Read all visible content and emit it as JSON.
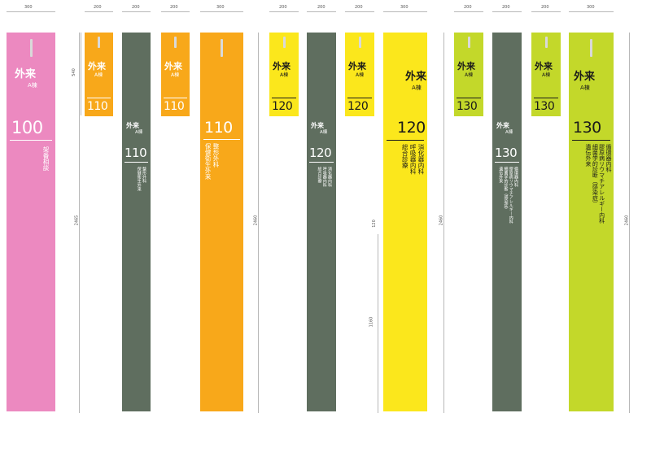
{
  "panel_defaults": {
    "building_label": "外来",
    "wing_label": "A棟"
  },
  "colors": {
    "pink": "#ec89c0",
    "orange": "#f8a81a",
    "gray": "#5f6e5f",
    "yellow": "#fbe71c",
    "lime": "#c3d82a"
  },
  "dimensions": {
    "width_300": "300",
    "width_200": "200",
    "height_2465": "2465",
    "height_2460": "2460",
    "height_540": "540",
    "height_120": "120",
    "width_70": "70",
    "height_1160": "1160"
  },
  "panels": {
    "p100_tall": {
      "number": "100",
      "depts": [
        "架番相談"
      ]
    },
    "p110_short": {
      "number": "110"
    },
    "p110_gray": {
      "number": "110",
      "depts": [
        "整形外科",
        "保健衛生外来"
      ]
    },
    "p110_short2": {
      "number": "110"
    },
    "p110_tall": {
      "number": "110",
      "depts": [
        "整形外科",
        "保健衛生外来"
      ]
    },
    "p120_short": {
      "number": "120"
    },
    "p120_gray": {
      "number": "120",
      "depts": [
        "消化器内科",
        "呼吸器内科",
        "総合診療"
      ]
    },
    "p120_short2": {
      "number": "120"
    },
    "p120_tall": {
      "number": "120",
      "depts": [
        "消化器内科",
        "呼吸器内科",
        "総合診療"
      ]
    },
    "p130_short": {
      "number": "130"
    },
    "p130_gray": {
      "number": "130",
      "depts": [
        "循環器内科",
        "膠原病リウマチアレルギー内科",
        "細菌学的診断（感染症）",
        "遺伝外来"
      ]
    },
    "p130_short2": {
      "number": "130"
    },
    "p130_tall": {
      "number": "130",
      "depts": [
        "循環器内科",
        "膠原病リウマチアレルギー内科",
        "細菌学的診断（感染症）",
        "遺伝外来"
      ]
    }
  }
}
